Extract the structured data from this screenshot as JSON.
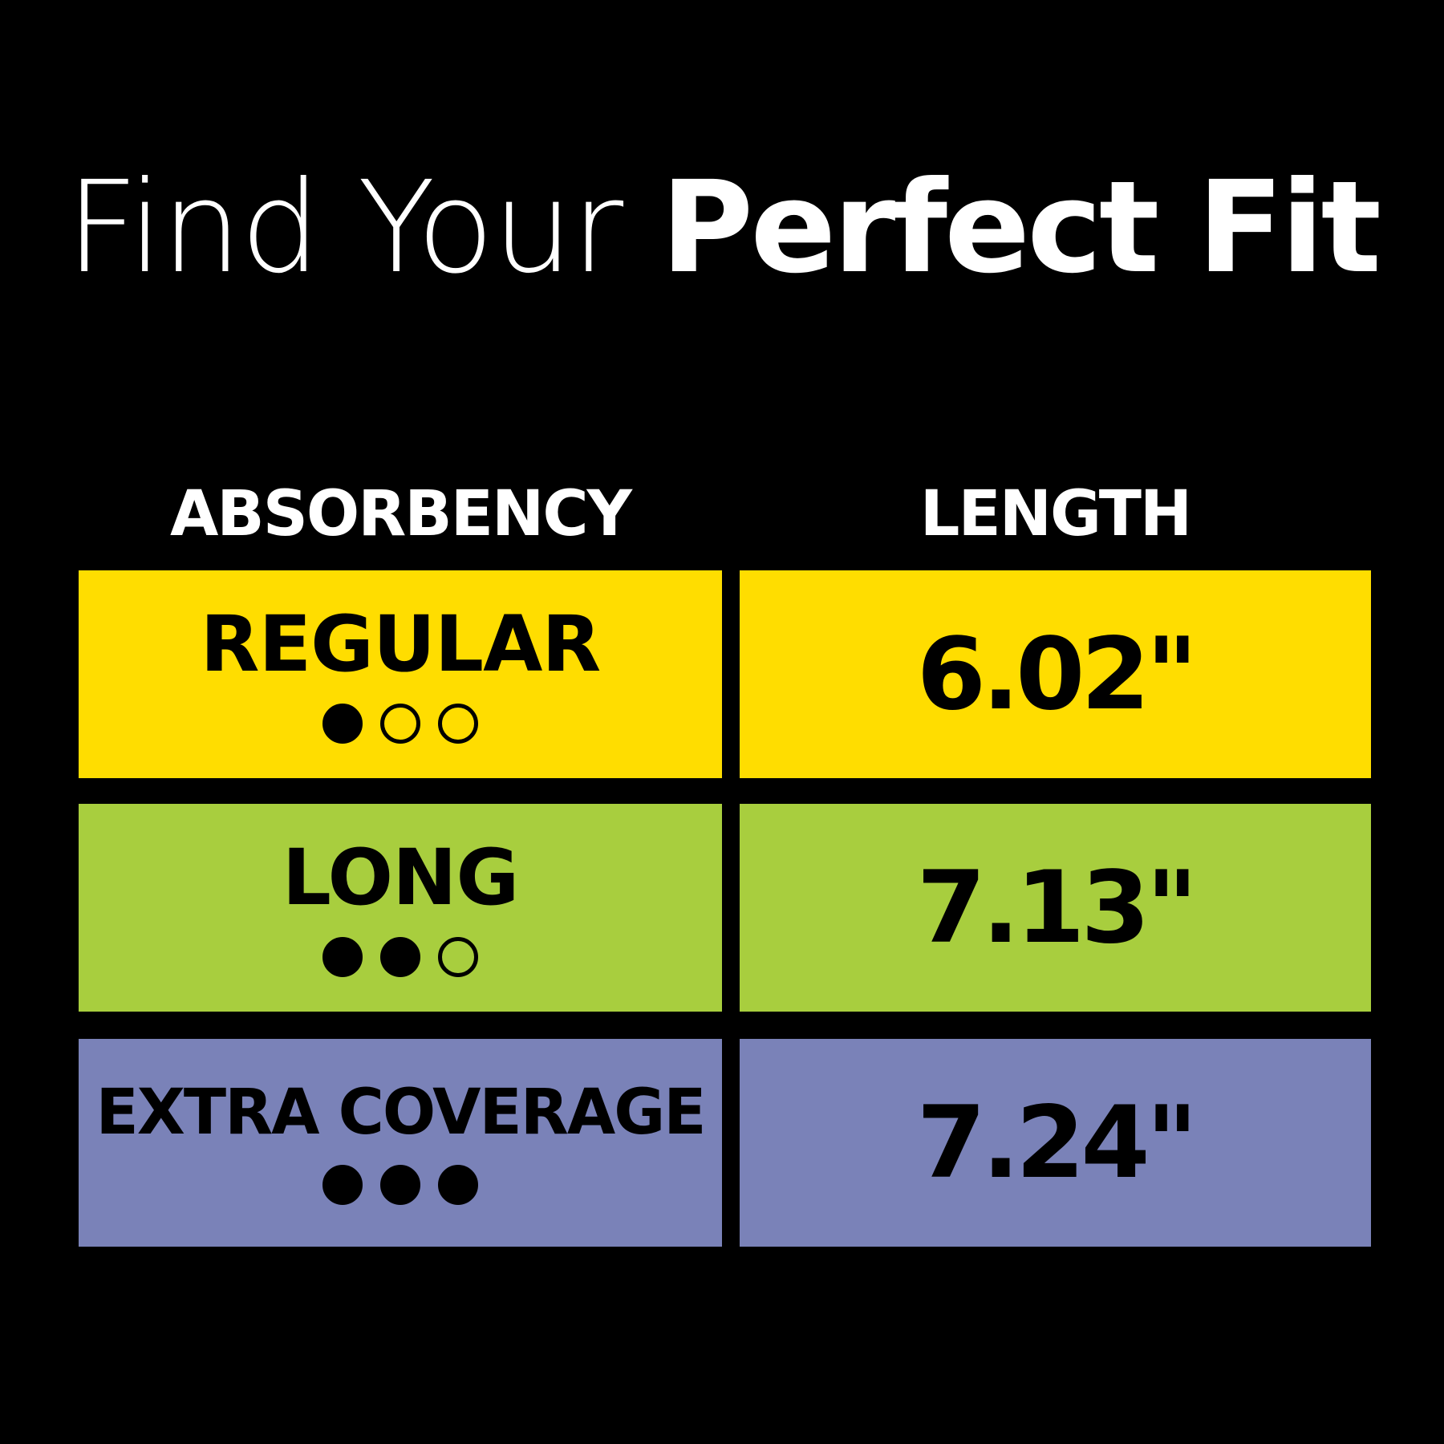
{
  "title": {
    "light": "Find Your ",
    "bold": "Perfect Fit"
  },
  "headers": {
    "absorbency": "ABSORBENCY",
    "length": "LENGTH"
  },
  "rows": [
    {
      "absorbency": "REGULAR",
      "level": 1,
      "max_level": 3,
      "length": "6.02\"",
      "color": "#FFDD00"
    },
    {
      "absorbency": "LONG",
      "level": 2,
      "max_level": 3,
      "length": "7.13\"",
      "color": "#A8CE3E"
    },
    {
      "absorbency": "EXTRA COVERAGE",
      "level": 3,
      "max_level": 3,
      "length": "7.24\"",
      "color": "#7A82B8"
    }
  ]
}
